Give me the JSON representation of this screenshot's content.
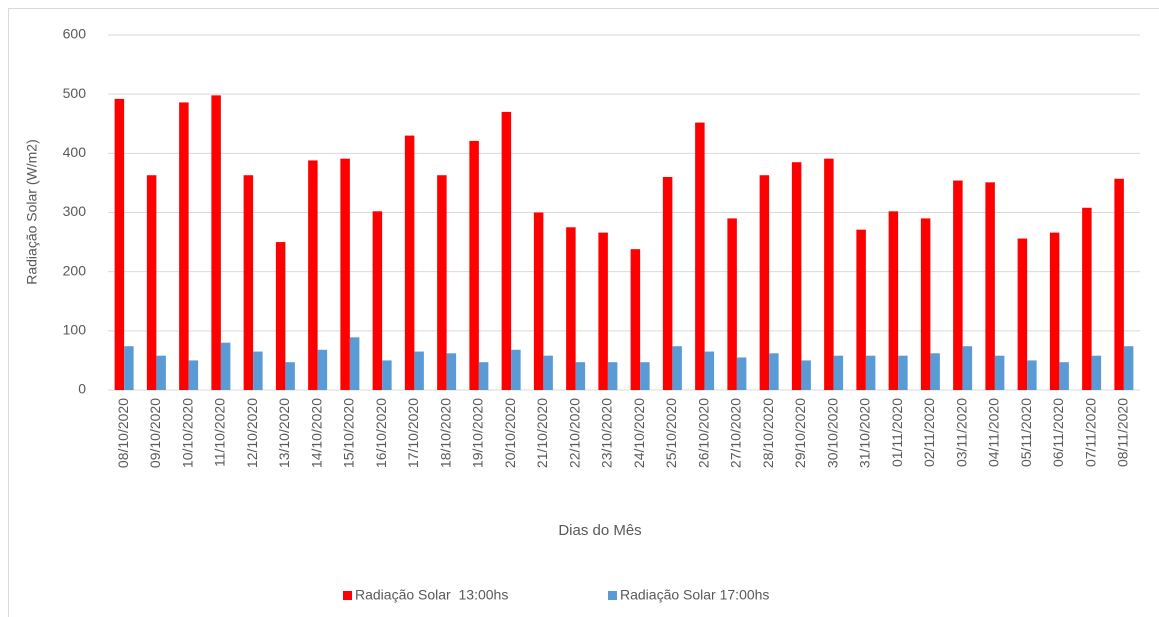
{
  "chart_data": {
    "type": "bar",
    "y_label": "Radiação Solar (W/m2)",
    "x_label": "Dias do Mês",
    "categories": [
      "08/10/2020",
      "09/10/2020",
      "10/10/2020",
      "11/10/2020",
      "12/10/2020",
      "13/10/2020",
      "14/10/2020",
      "15/10/2020",
      "16/10/2020",
      "17/10/2020",
      "18/10/2020",
      "19/10/2020",
      "20/10/2020",
      "21/10/2020",
      "22/10/2020",
      "23/10/2020",
      "24/10/2020",
      "25/10/2020",
      "26/10/2020",
      "27/10/2020",
      "28/10/2020",
      "29/10/2020",
      "30/10/2020",
      "31/10/2020",
      "01/11/2020",
      "02/11/2020",
      "03/11/2020",
      "04/11/2020",
      "05/11/2020",
      "06/11/2020",
      "07/11/2020",
      "08/11/2020"
    ],
    "series": [
      {
        "name": "Radiação Solar  13:00hs",
        "color": "#ff0000",
        "values": [
          492,
          363,
          486,
          498,
          363,
          250,
          388,
          391,
          302,
          430,
          363,
          421,
          470,
          300,
          275,
          266,
          238,
          360,
          452,
          290,
          363,
          385,
          391,
          271,
          302,
          290,
          354,
          351,
          256,
          266,
          308,
          357
        ]
      },
      {
        "name": "Radiação Solar 17:00hs",
        "color": "#5b9bd5",
        "values": [
          74,
          58,
          50,
          80,
          65,
          47,
          68,
          89,
          50,
          65,
          62,
          47,
          68,
          58,
          47,
          47,
          47,
          74,
          65,
          55,
          62,
          50,
          58,
          58,
          58,
          62,
          74,
          58,
          50,
          47,
          58,
          74
        ]
      }
    ],
    "ylim": [
      0,
      600
    ],
    "yticks": [
      0,
      100,
      200,
      300,
      400,
      500,
      600
    ],
    "grid": true,
    "legend": "bottom"
  }
}
